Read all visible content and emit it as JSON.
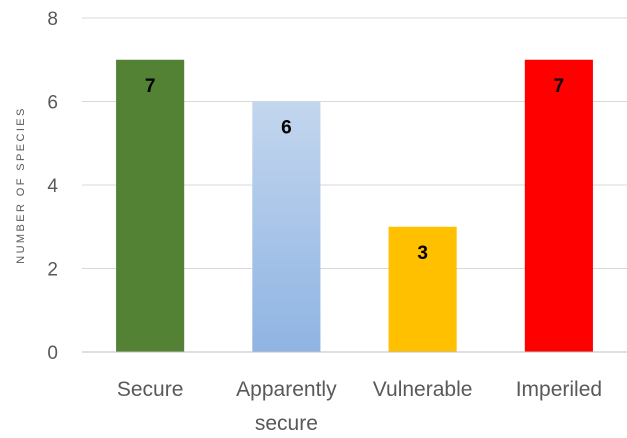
{
  "chart_data": {
    "type": "bar",
    "title": "",
    "xlabel": "",
    "ylabel": "NUMBER OF SPECIES",
    "categories": [
      [
        "Secure"
      ],
      [
        "Apparently",
        "secure"
      ],
      [
        "Vulnerable"
      ],
      [
        "Imperiled"
      ]
    ],
    "values": [
      7,
      6,
      3,
      7
    ],
    "data_labels": [
      "7",
      "6",
      "3",
      "7"
    ],
    "colors": [
      "#548235",
      "gradient:#c3d6ee-#8fb4e3",
      "#ffc000",
      "#ff0000"
    ],
    "ylim": [
      0,
      8
    ],
    "yticks": [
      0,
      2,
      4,
      6,
      8
    ],
    "grid": true,
    "legend": "none"
  }
}
